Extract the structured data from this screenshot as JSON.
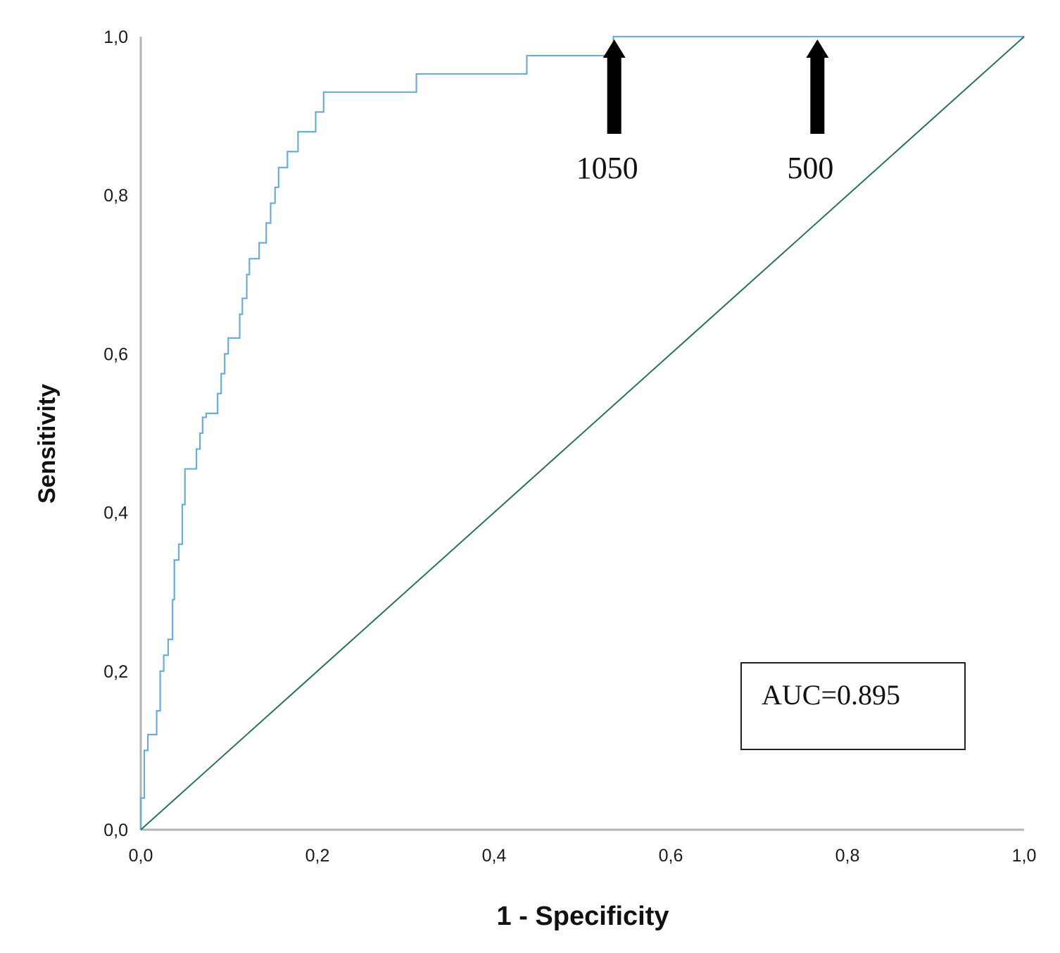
{
  "chart_data": {
    "type": "line",
    "title": "",
    "xlabel": "1 - Specificity",
    "ylabel": "Sensitivity",
    "xlim": [
      0,
      1
    ],
    "ylim": [
      0,
      1
    ],
    "x_ticks": [
      "0,0",
      "0,2",
      "0,4",
      "0,6",
      "0,8",
      "1,0"
    ],
    "y_ticks": [
      "0,0",
      "0,2",
      "0,4",
      "0,6",
      "0,8",
      "1,0"
    ],
    "grid": false,
    "legend": "none",
    "series": [
      {
        "style": "step",
        "color": "#6aaed6",
        "points": [
          [
            0.0,
            0.0
          ],
          [
            0.0,
            0.04
          ],
          [
            0.004,
            0.04
          ],
          [
            0.004,
            0.1
          ],
          [
            0.008,
            0.1
          ],
          [
            0.008,
            0.12
          ],
          [
            0.018,
            0.12
          ],
          [
            0.018,
            0.15
          ],
          [
            0.022,
            0.15
          ],
          [
            0.022,
            0.2
          ],
          [
            0.026,
            0.2
          ],
          [
            0.026,
            0.22
          ],
          [
            0.031,
            0.22
          ],
          [
            0.031,
            0.24
          ],
          [
            0.036,
            0.24
          ],
          [
            0.036,
            0.29
          ],
          [
            0.038,
            0.29
          ],
          [
            0.038,
            0.34
          ],
          [
            0.043,
            0.34
          ],
          [
            0.043,
            0.36
          ],
          [
            0.047,
            0.36
          ],
          [
            0.047,
            0.41
          ],
          [
            0.05,
            0.41
          ],
          [
            0.05,
            0.455
          ],
          [
            0.06,
            0.455
          ],
          [
            0.06,
            0.455
          ],
          [
            0.063,
            0.455
          ],
          [
            0.063,
            0.48
          ],
          [
            0.067,
            0.48
          ],
          [
            0.067,
            0.5
          ],
          [
            0.07,
            0.5
          ],
          [
            0.07,
            0.52
          ],
          [
            0.074,
            0.52
          ],
          [
            0.074,
            0.525
          ],
          [
            0.087,
            0.525
          ],
          [
            0.087,
            0.55
          ],
          [
            0.091,
            0.55
          ],
          [
            0.091,
            0.575
          ],
          [
            0.095,
            0.575
          ],
          [
            0.095,
            0.6
          ],
          [
            0.099,
            0.6
          ],
          [
            0.099,
            0.62
          ],
          [
            0.112,
            0.62
          ],
          [
            0.112,
            0.65
          ],
          [
            0.115,
            0.65
          ],
          [
            0.115,
            0.67
          ],
          [
            0.12,
            0.67
          ],
          [
            0.12,
            0.7
          ],
          [
            0.123,
            0.7
          ],
          [
            0.123,
            0.72
          ],
          [
            0.134,
            0.72
          ],
          [
            0.134,
            0.74
          ],
          [
            0.142,
            0.74
          ],
          [
            0.142,
            0.765
          ],
          [
            0.147,
            0.765
          ],
          [
            0.147,
            0.79
          ],
          [
            0.152,
            0.79
          ],
          [
            0.152,
            0.81
          ],
          [
            0.156,
            0.81
          ],
          [
            0.156,
            0.835
          ],
          [
            0.166,
            0.835
          ],
          [
            0.166,
            0.855
          ],
          [
            0.178,
            0.855
          ],
          [
            0.178,
            0.88
          ],
          [
            0.198,
            0.88
          ],
          [
            0.198,
            0.905
          ],
          [
            0.207,
            0.905
          ],
          [
            0.207,
            0.93
          ],
          [
            0.312,
            0.93
          ],
          [
            0.312,
            0.953
          ],
          [
            0.437,
            0.953
          ],
          [
            0.437,
            0.976
          ],
          [
            0.535,
            0.976
          ],
          [
            0.535,
            1.0
          ],
          [
            1.0,
            1.0
          ]
        ]
      },
      {
        "style": "line",
        "color": "#2a6f5f",
        "points": [
          [
            0.0,
            0.0
          ],
          [
            1.0,
            1.0
          ]
        ]
      }
    ],
    "annotations": [
      {
        "text": "1050",
        "x": 0.536,
        "y": 1.0,
        "type": "arrow"
      },
      {
        "text": "500",
        "x": 0.766,
        "y": 1.0,
        "type": "arrow"
      },
      {
        "text": "AUC=0.895",
        "type": "box"
      }
    ]
  }
}
